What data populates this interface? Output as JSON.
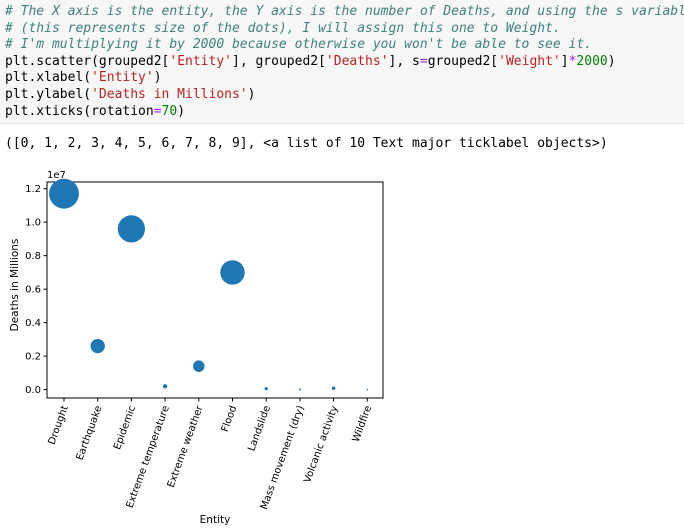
{
  "code_cell": {
    "comments": [
      "# The X axis is the entity, the Y axis is the number of Deaths, and using the s variable",
      "# (this represents size of the dots), I will assign this one to Weight.",
      "# I'm multiplying it by 2000 because otherwise you won't be able to see it."
    ],
    "scatter_call": {
      "prefix": "plt.scatter(grouped2[",
      "arg1": "'Entity'",
      "mid1": "], grouped2[",
      "arg2": "'Deaths'",
      "mid2": "], s",
      "eq": "=",
      "mid3": "grouped2[",
      "arg3": "'Weight'",
      "mid4": "]",
      "mult": "*",
      "num": "2000",
      "suffix": ")"
    },
    "xlabel_call": {
      "prefix": "plt.xlabel(",
      "arg": "'Entity'",
      "suffix": ")"
    },
    "ylabel_call": {
      "prefix": "plt.ylabel(",
      "arg": "'Deaths in Millions'",
      "suffix": ")"
    },
    "xticks_call": {
      "prefix": "plt.xticks(rotation",
      "eq": "=",
      "num": "70",
      "suffix": ")"
    }
  },
  "output": {
    "text": "([0, 1, 2, 3, 4, 5, 6, 7, 8, 9], <a list of 10 Text major ticklabel objects>)"
  },
  "chart_data": {
    "type": "scatter",
    "xlabel": "Entity",
    "ylabel": "Deaths in Millions",
    "y_offset_label": "1e7",
    "categories": [
      "Drought",
      "Earthquake",
      "Epidemic",
      "Extreme temperature",
      "Extreme weather",
      "Flood",
      "Landslide",
      "Mass movement (dry)",
      "Volcanic activity",
      "Wildfire"
    ],
    "y_values": [
      1.17,
      0.26,
      0.96,
      0.02,
      0.14,
      0.7,
      0.006,
      0.001,
      0.008,
      0.0005
    ],
    "point_area": [
      700,
      160,
      580,
      15,
      105,
      470,
      8,
      3,
      10,
      2
    ],
    "ylim": [
      -0.05,
      1.24
    ],
    "yticks": [
      0.0,
      0.2,
      0.4,
      0.6,
      0.8,
      1.0,
      1.2
    ],
    "ytick_labels": [
      "0.0",
      "0.2",
      "0.4",
      "0.6",
      "0.8",
      "1.0",
      "1.2"
    ],
    "tick_rotation": 70,
    "point_color": "#1f77b4",
    "grid": false
  }
}
